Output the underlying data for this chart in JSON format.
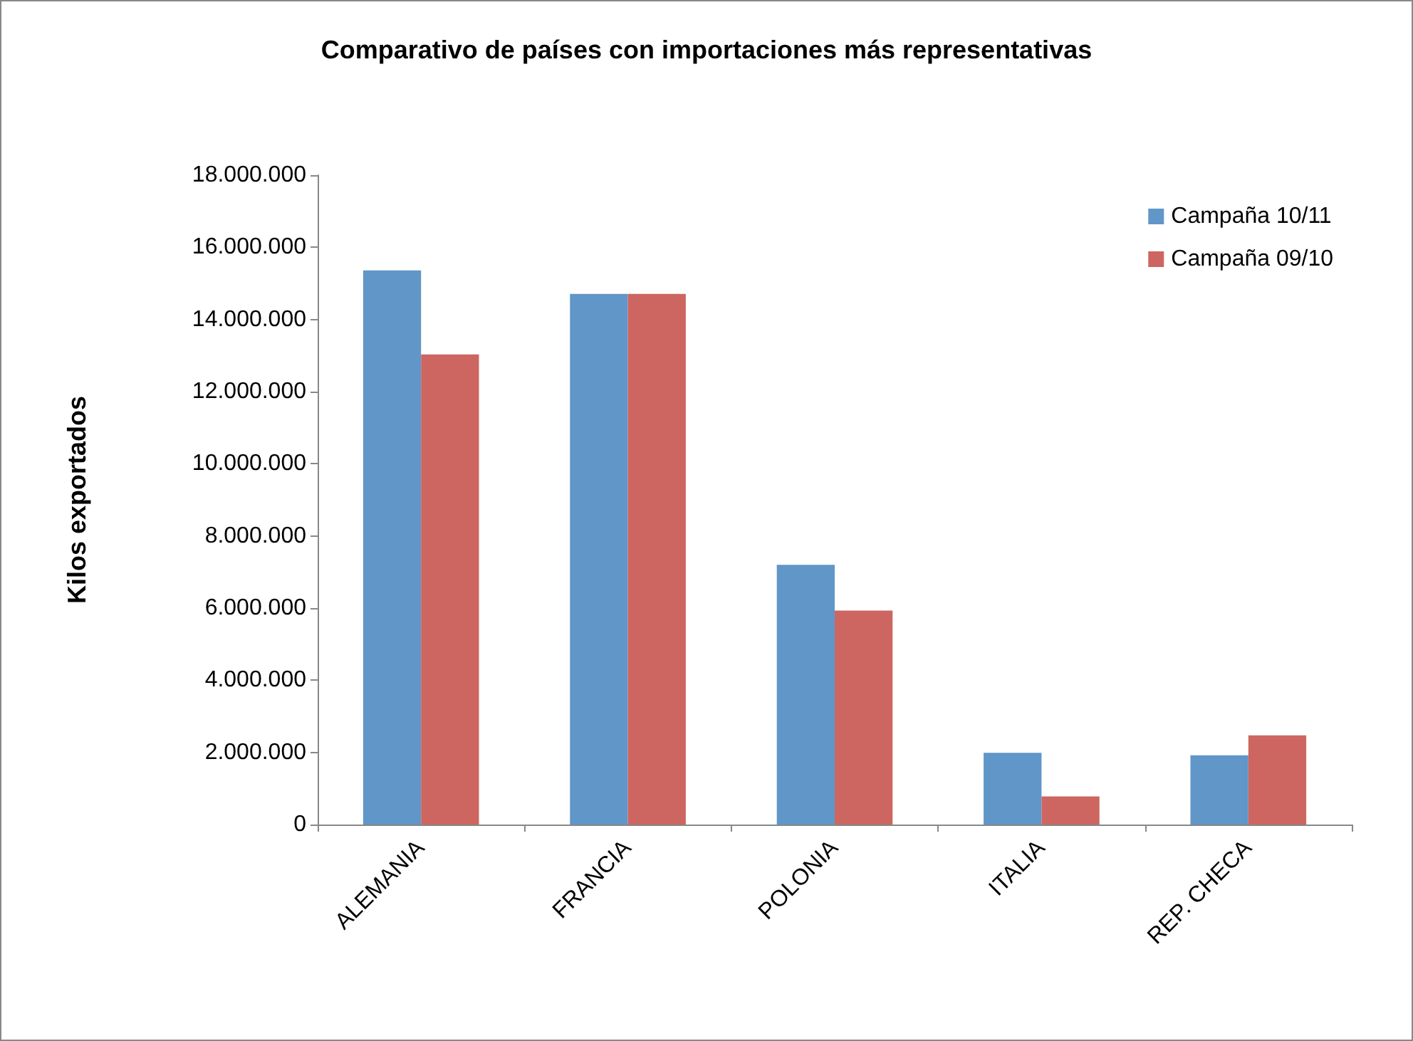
{
  "chart_data": {
    "type": "bar",
    "title": "Comparativo de países con importaciones más representativas",
    "ylabel": "Kilos exportados",
    "categories": [
      "ALEMANIA",
      "FRANCIA",
      "POLONIA",
      "ITALIA",
      "REP. CHECA"
    ],
    "series": [
      {
        "name": "Campaña 10/11",
        "color": "#6096c8",
        "values": [
          15360000,
          14710000,
          7200000,
          1990000,
          1920000
        ]
      },
      {
        "name": "Campaña 09/10",
        "color": "#cd6660",
        "values": [
          13030000,
          14710000,
          5930000,
          780000,
          2470000
        ]
      }
    ],
    "ylim": [
      0,
      18000000
    ],
    "yticks": [
      {
        "value": 0,
        "label": "0"
      },
      {
        "value": 2000000,
        "label": "2.000.000"
      },
      {
        "value": 4000000,
        "label": "4.000.000"
      },
      {
        "value": 6000000,
        "label": "6.000.000"
      },
      {
        "value": 8000000,
        "label": "8.000.000"
      },
      {
        "value": 10000000,
        "label": "10.000.000"
      },
      {
        "value": 12000000,
        "label": "12.000.000"
      },
      {
        "value": 14000000,
        "label": "14.000.000"
      },
      {
        "value": 16000000,
        "label": "16.000.000"
      },
      {
        "value": 18000000,
        "label": "18.000.000"
      }
    ],
    "grid": false,
    "legend": "top right"
  }
}
